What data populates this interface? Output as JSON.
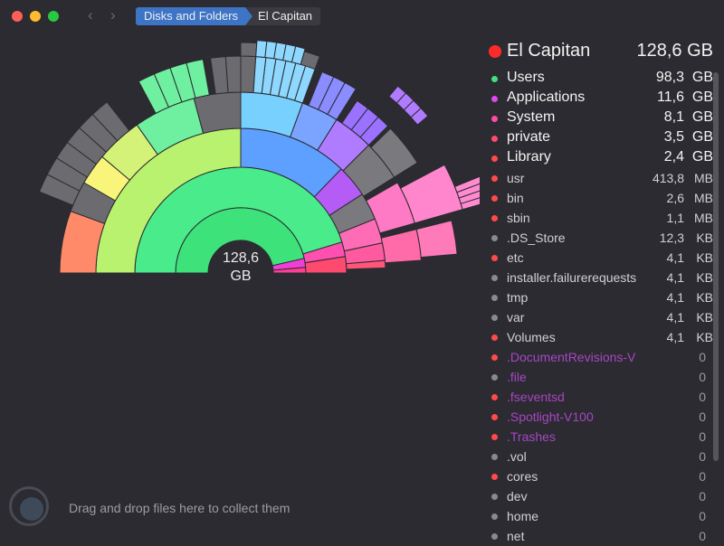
{
  "breadcrumb": [
    "Disks and Folders",
    "El Capitan"
  ],
  "center": {
    "line1": "128,6",
    "line2": "GB"
  },
  "drop_text": "Drag and drop files here to collect them",
  "root": {
    "name": "El Capitan",
    "size": "128,6 GB",
    "color": "#ff2a2a"
  },
  "items": [
    {
      "name": "Users",
      "num": "98,3",
      "unit": "GB",
      "color": "#44e07a",
      "big": true
    },
    {
      "name": "Applications",
      "num": "11,6",
      "unit": "GB",
      "color": "#d94af0",
      "big": true
    },
    {
      "name": "System",
      "num": "8,1",
      "unit": "GB",
      "color": "#ff4aa6",
      "big": true
    },
    {
      "name": "private",
      "num": "3,5",
      "unit": "GB",
      "color": "#ff4a6a",
      "big": true
    },
    {
      "name": "Library",
      "num": "2,4",
      "unit": "GB",
      "color": "#ff4a4a",
      "big": true
    },
    {
      "name": "usr",
      "num": "413,8",
      "unit": "MB",
      "color": "#ff4a4a"
    },
    {
      "name": "bin",
      "num": "2,6",
      "unit": "MB",
      "color": "#ff4a4a"
    },
    {
      "name": "sbin",
      "num": "1,1",
      "unit": "MB",
      "color": "#ff4a4a"
    },
    {
      "name": ".DS_Store",
      "num": "12,3",
      "unit": "KB",
      "color": "#8a8a8e"
    },
    {
      "name": "etc",
      "num": "4,1",
      "unit": "KB",
      "color": "#ff4a4a"
    },
    {
      "name": "installer.failurerequests",
      "num": "4,1",
      "unit": "KB",
      "color": "#8a8a8e"
    },
    {
      "name": "tmp",
      "num": "4,1",
      "unit": "KB",
      "color": "#8a8a8e"
    },
    {
      "name": "var",
      "num": "4,1",
      "unit": "KB",
      "color": "#8a8a8e"
    },
    {
      "name": "Volumes",
      "num": "4,1",
      "unit": "KB",
      "color": "#ff4a4a"
    },
    {
      "name": ".DocumentRevisions-V",
      "num": "0",
      "unit": "",
      "color": "#ff4a4a",
      "purple": true
    },
    {
      "name": ".file",
      "num": "0",
      "unit": "",
      "color": "#8a8a8e",
      "purple": true
    },
    {
      "name": ".fseventsd",
      "num": "0",
      "unit": "",
      "color": "#ff4a4a",
      "purple": true
    },
    {
      "name": ".Spotlight-V100",
      "num": "0",
      "unit": "",
      "color": "#ff4a4a",
      "purple": true
    },
    {
      "name": ".Trashes",
      "num": "0",
      "unit": "",
      "color": "#ff4a4a",
      "purple": true
    },
    {
      "name": ".vol",
      "num": "0",
      "unit": "",
      "color": "#8a8a8e"
    },
    {
      "name": "cores",
      "num": "0",
      "unit": "",
      "color": "#ff4a4a"
    },
    {
      "name": "dev",
      "num": "0",
      "unit": "",
      "color": "#8a8a8e"
    },
    {
      "name": "home",
      "num": "0",
      "unit": "",
      "color": "#8a8a8e"
    },
    {
      "name": "net",
      "num": "0",
      "unit": "",
      "color": "#8a8a8e"
    }
  ]
}
